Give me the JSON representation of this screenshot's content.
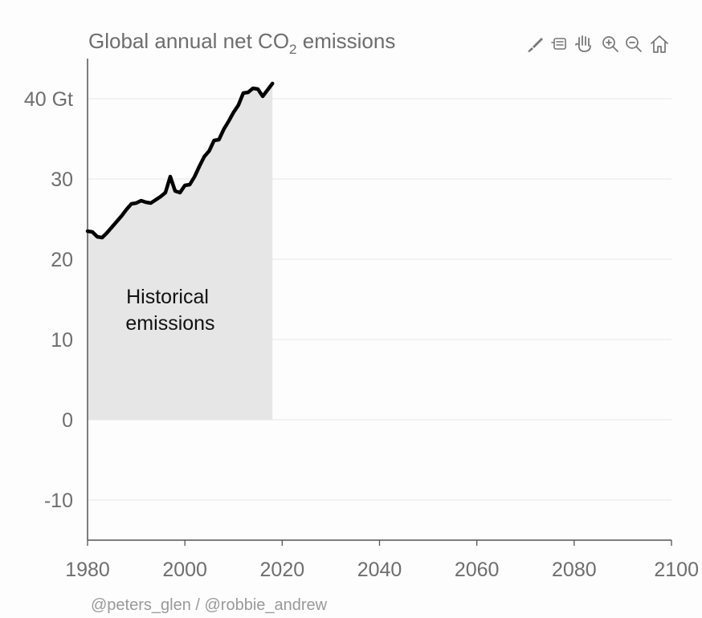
{
  "toolbar": {
    "tools": [
      {
        "name": "brush-icon"
      },
      {
        "name": "lasso-select-icon"
      },
      {
        "name": "pan-hand-icon"
      },
      {
        "name": "zoom-in-icon"
      },
      {
        "name": "zoom-out-icon"
      },
      {
        "name": "home-reset-icon"
      }
    ],
    "icon_color": "#777777"
  },
  "footer": {
    "credit": "@peters_glen / @robbie_andrew"
  },
  "colors": {
    "background": "#fdfdfd",
    "fill": "#e6e6e6",
    "line": "#000000",
    "gridline": "#ebebeb",
    "axis": "#555555",
    "text": "#6e6e6e"
  },
  "chart_data": {
    "type": "area",
    "title": {
      "prefix": "Global annual net CO",
      "subscript": "2",
      "suffix": " emissions"
    },
    "xlabel": "",
    "ylabel": "",
    "xlim": [
      1980,
      2100
    ],
    "ylim": [
      -15,
      45
    ],
    "x_ticks": [
      1980,
      2000,
      2020,
      2040,
      2060,
      2080,
      2100
    ],
    "x_tick_labels": [
      "1980",
      "2000",
      "2020",
      "2040",
      "2060",
      "2080",
      "2100"
    ],
    "y_ticks": [
      -10,
      0,
      10,
      20,
      30,
      40
    ],
    "y_tick_labels": [
      "-10",
      "0",
      "10",
      "20",
      "30",
      "40 Gt"
    ],
    "grid": true,
    "annotation": {
      "lines": [
        "Historical",
        "emissions"
      ],
      "x": 1997,
      "y": 14.5
    },
    "series": [
      {
        "x": [
          1980,
          1981,
          1982,
          1983,
          1984,
          1985,
          1986,
          1987,
          1988,
          1989,
          1990,
          1991,
          1992,
          1993,
          1994,
          1995,
          1996,
          1997,
          1998,
          1999,
          2000,
          2001,
          2002,
          2003,
          2004,
          2005,
          2006,
          2007,
          2008,
          2009,
          2010,
          2011,
          2012,
          2013,
          2014,
          2015,
          2016,
          2017,
          2018
        ],
        "values": [
          23.5,
          23.4,
          22.8,
          22.7,
          23.3,
          24.0,
          24.7,
          25.4,
          26.2,
          26.9,
          27.0,
          27.3,
          27.1,
          27.0,
          27.4,
          27.8,
          28.3,
          30.3,
          28.5,
          28.3,
          29.2,
          29.3,
          30.3,
          31.6,
          32.8,
          33.5,
          34.8,
          34.9,
          36.2,
          37.2,
          38.3,
          39.2,
          40.7,
          40.8,
          41.3,
          41.2,
          40.3,
          41.1,
          41.9
        ]
      }
    ]
  }
}
